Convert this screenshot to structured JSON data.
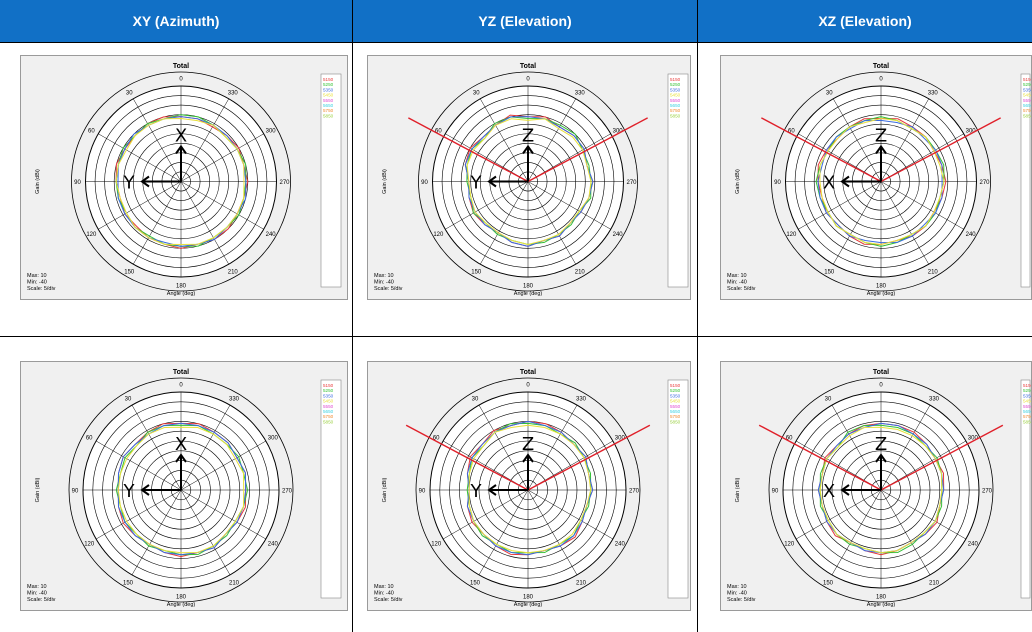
{
  "columns": [
    "XY (Azimuth)",
    "YZ (Elevation)",
    "XZ (Elevation)"
  ],
  "colors": {
    "header_bg": "#1170c6",
    "plot_bg": "#f0f0f0",
    "ring": "#000000",
    "beam_line": "#e0202a",
    "series": [
      "#e83a3a",
      "#35c235",
      "#3a6be0",
      "#e8e03a",
      "#e04ad0",
      "#3ad0e0",
      "#f08a30",
      "#9ad040"
    ]
  },
  "chart_data": [
    {
      "type": "polar",
      "panel": "row1-xy",
      "title": "Total",
      "xlabel": "Angle (deg)",
      "ylabel": "Gain (dBi)",
      "angle_ticks": [
        "0",
        "30",
        "60",
        "90",
        "120",
        "150",
        "180",
        "210",
        "240",
        "270",
        "300",
        "330"
      ],
      "info": [
        "Max: 10",
        "Min: -40",
        "Scale: 5/div"
      ],
      "legend_items": [
        "5150",
        "5250",
        "5350",
        "5450",
        "5550",
        "5650",
        "5750",
        "5850"
      ],
      "axes_labels": {
        "up": "X",
        "left": "Y"
      },
      "beam_lines": false,
      "r_range": [
        -40,
        10
      ],
      "series": [
        {
          "values": [
            -6,
            -5,
            -5,
            -6,
            -6,
            -5,
            -6,
            -7,
            -6,
            -7,
            -6,
            -6,
            -5,
            -6,
            -5,
            -5,
            -6,
            -6,
            -5,
            -6,
            -5,
            -6,
            -7,
            -6
          ]
        },
        {
          "values": [
            -5,
            -6,
            -5,
            -6,
            -5,
            -6,
            -6,
            -6,
            -7,
            -6,
            -7,
            -6,
            -6,
            -5,
            -6,
            -6,
            -5,
            -6,
            -6,
            -5,
            -6,
            -7,
            -6,
            -5
          ]
        },
        {
          "values": [
            -6,
            -6,
            -6,
            -5,
            -6,
            -6,
            -7,
            -6,
            -6,
            -6,
            -6,
            -7,
            -6,
            -6,
            -5,
            -6,
            -6,
            -5,
            -6,
            -6,
            -6,
            -6,
            -6,
            -6
          ]
        },
        {
          "values": [
            -7,
            -6,
            -6,
            -6,
            -7,
            -6,
            -6,
            -7,
            -7,
            -6,
            -6,
            -6,
            -7,
            -6,
            -6,
            -6,
            -6,
            -6,
            -7,
            -6,
            -6,
            -7,
            -6,
            -7
          ]
        }
      ]
    },
    {
      "type": "polar",
      "panel": "row1-yz",
      "title": "Total",
      "xlabel": "Angle (deg)",
      "ylabel": "Gain (dBi)",
      "angle_ticks": [
        "0",
        "30",
        "60",
        "90",
        "120",
        "150",
        "180",
        "210",
        "240",
        "270",
        "300",
        "330"
      ],
      "info": [
        "Max: 10",
        "Min: -40",
        "Scale: 5/div"
      ],
      "legend_items": [
        "5150",
        "5250",
        "5350",
        "5450",
        "5550",
        "5650",
        "5750",
        "5850"
      ],
      "axes_labels": {
        "up": "Z",
        "left": "Y"
      },
      "beam_lines": true,
      "r_range": [
        -40,
        10
      ],
      "series": [
        {
          "values": [
            -6,
            -4,
            -6,
            -7,
            -5,
            -6,
            -9,
            -8,
            -7,
            -8,
            -9,
            -7,
            -6,
            -8,
            -7,
            -9,
            -8,
            -7,
            -6,
            -8,
            -6,
            -6,
            -7,
            -5
          ]
        },
        {
          "values": [
            -7,
            -5,
            -5,
            -8,
            -6,
            -7,
            -8,
            -9,
            -7,
            -9,
            -8,
            -8,
            -7,
            -7,
            -8,
            -8,
            -9,
            -6,
            -7,
            -7,
            -7,
            -5,
            -6,
            -6
          ]
        },
        {
          "values": [
            -6,
            -5,
            -6,
            -7,
            -6,
            -6,
            -9,
            -8,
            -8,
            -8,
            -9,
            -7,
            -6,
            -8,
            -7,
            -9,
            -8,
            -7,
            -6,
            -8,
            -6,
            -6,
            -7,
            -6
          ]
        },
        {
          "values": [
            -8,
            -6,
            -6,
            -8,
            -7,
            -7,
            -9,
            -9,
            -8,
            -9,
            -9,
            -8,
            -7,
            -8,
            -8,
            -9,
            -9,
            -7,
            -7,
            -8,
            -7,
            -7,
            -8,
            -6
          ]
        }
      ]
    },
    {
      "type": "polar",
      "panel": "row1-xz",
      "title": "Total",
      "xlabel": "Angle (deg)",
      "ylabel": "Gain (dBi)",
      "angle_ticks": [
        "0",
        "30",
        "60",
        "90",
        "120",
        "150",
        "180",
        "210",
        "240",
        "270",
        "300",
        "330"
      ],
      "info": [
        "Max: 10",
        "Min: -40",
        "Scale: 5/div"
      ],
      "legend_items": [
        "5150",
        "5250",
        "5350",
        "5450",
        "5550",
        "5650",
        "5750",
        "5850"
      ],
      "axes_labels": {
        "up": "Z",
        "left": "X"
      },
      "beam_lines": true,
      "r_range": [
        -40,
        10
      ],
      "series": [
        {
          "values": [
            -7,
            -6,
            -7,
            -8,
            -7,
            -6,
            -7,
            -8,
            -7,
            -8,
            -7,
            -6,
            -7,
            -8,
            -7,
            -7,
            -8,
            -7,
            -6,
            -7,
            -8,
            -7,
            -7,
            -6
          ]
        },
        {
          "values": [
            -6,
            -7,
            -7,
            -7,
            -8,
            -7,
            -6,
            -7,
            -8,
            -7,
            -8,
            -7,
            -6,
            -7,
            -8,
            -7,
            -7,
            -8,
            -7,
            -6,
            -7,
            -7,
            -8,
            -7
          ]
        },
        {
          "values": [
            -8,
            -7,
            -8,
            -7,
            -7,
            -8,
            -7,
            -7,
            -7,
            -8,
            -7,
            -8,
            -8,
            -7,
            -7,
            -8,
            -7,
            -7,
            -8,
            -7,
            -7,
            -8,
            -7,
            -8
          ]
        },
        {
          "values": [
            -7,
            -8,
            -7,
            -8,
            -8,
            -7,
            -8,
            -8,
            -8,
            -7,
            -8,
            -7,
            -7,
            -8,
            -8,
            -7,
            -8,
            -8,
            -7,
            -8,
            -8,
            -7,
            -8,
            -7
          ]
        }
      ]
    },
    {
      "type": "polar",
      "panel": "row2-xy",
      "title": "Total",
      "xlabel": "Angle (deg)",
      "ylabel": "Gain (dBi)",
      "angle_ticks": [
        "0",
        "30",
        "60",
        "90",
        "120",
        "150",
        "180",
        "210",
        "240",
        "270",
        "300",
        "330"
      ],
      "info": [
        "Max: 10",
        "Min: -40",
        "Scale: 5/div"
      ],
      "legend_items": [
        "5150",
        "5250",
        "5350",
        "5450",
        "5550",
        "5650",
        "5750",
        "5850"
      ],
      "axes_labels": {
        "up": "X",
        "left": "Y"
      },
      "beam_lines": false,
      "r_range": [
        -40,
        10
      ],
      "series": [
        {
          "values": [
            -6,
            -5,
            -6,
            -7,
            -6,
            -7,
            -8,
            -7,
            -6,
            -7,
            -8,
            -7,
            -6,
            -7,
            -6,
            -8,
            -7,
            -6,
            -7,
            -6,
            -7,
            -6,
            -6,
            -5
          ]
        },
        {
          "values": [
            -7,
            -6,
            -6,
            -8,
            -7,
            -8,
            -7,
            -8,
            -7,
            -8,
            -7,
            -8,
            -7,
            -6,
            -7,
            -7,
            -8,
            -7,
            -6,
            -7,
            -6,
            -7,
            -7,
            -6
          ]
        },
        {
          "values": [
            -6,
            -6,
            -7,
            -7,
            -6,
            -7,
            -8,
            -7,
            -7,
            -7,
            -8,
            -7,
            -7,
            -7,
            -6,
            -8,
            -7,
            -7,
            -7,
            -6,
            -7,
            -6,
            -6,
            -6
          ]
        },
        {
          "values": [
            -8,
            -7,
            -7,
            -8,
            -8,
            -8,
            -8,
            -8,
            -8,
            -8,
            -8,
            -8,
            -8,
            -7,
            -7,
            -8,
            -8,
            -7,
            -8,
            -7,
            -8,
            -7,
            -7,
            -7
          ]
        }
      ]
    },
    {
      "type": "polar",
      "panel": "row2-yz",
      "title": "Total",
      "xlabel": "Angle (deg)",
      "ylabel": "Gain (dBi)",
      "angle_ticks": [
        "0",
        "30",
        "60",
        "90",
        "120",
        "150",
        "180",
        "210",
        "240",
        "270",
        "300",
        "330"
      ],
      "info": [
        "Max: 10",
        "Min: -40",
        "Scale: 5/div"
      ],
      "legend_items": [
        "5150",
        "5250",
        "5350",
        "5450",
        "5550",
        "5650",
        "5750",
        "5850"
      ],
      "axes_labels": {
        "up": "Z",
        "left": "Y"
      },
      "beam_lines": true,
      "r_range": [
        -40,
        10
      ],
      "series": [
        {
          "values": [
            -5,
            -6,
            -5,
            -7,
            -6,
            -8,
            -10,
            -8,
            -7,
            -8,
            -7,
            -6,
            -7,
            -8,
            -7,
            -6,
            -8,
            -9,
            -7,
            -8,
            -6,
            -7,
            -6,
            -5
          ]
        },
        {
          "values": [
            -6,
            -5,
            -6,
            -8,
            -7,
            -9,
            -9,
            -9,
            -8,
            -7,
            -8,
            -7,
            -8,
            -7,
            -8,
            -7,
            -9,
            -8,
            -8,
            -7,
            -7,
            -6,
            -7,
            -6
          ]
        },
        {
          "values": [
            -5,
            -6,
            -6,
            -7,
            -7,
            -8,
            -10,
            -8,
            -8,
            -8,
            -7,
            -7,
            -7,
            -8,
            -7,
            -7,
            -8,
            -9,
            -7,
            -8,
            -6,
            -7,
            -6,
            -6
          ]
        },
        {
          "values": [
            -7,
            -7,
            -6,
            -8,
            -8,
            -9,
            -10,
            -9,
            -8,
            -8,
            -8,
            -8,
            -8,
            -8,
            -8,
            -8,
            -9,
            -9,
            -8,
            -8,
            -7,
            -7,
            -7,
            -7
          ]
        }
      ]
    },
    {
      "type": "polar",
      "panel": "row2-xz",
      "title": "Total",
      "xlabel": "Angle (deg)",
      "ylabel": "Gain (dBi)",
      "angle_ticks": [
        "0",
        "30",
        "60",
        "90",
        "120",
        "150",
        "180",
        "210",
        "240",
        "270",
        "300",
        "330"
      ],
      "info": [
        "Max: 10",
        "Min: -40",
        "Scale: 5/div"
      ],
      "legend_items": [
        "5150",
        "5250",
        "5350",
        "5450",
        "5550",
        "5650",
        "5750",
        "5850"
      ],
      "axes_labels": {
        "up": "Z",
        "left": "X"
      },
      "beam_lines": true,
      "r_range": [
        -40,
        10
      ],
      "series": [
        {
          "values": [
            -6,
            -6,
            -7,
            -8,
            -7,
            -9,
            -8,
            -9,
            -8,
            -7,
            -9,
            -8,
            -7,
            -8,
            -9,
            -8,
            -7,
            -9,
            -8,
            -7,
            -8,
            -7,
            -6,
            -6
          ]
        },
        {
          "values": [
            -7,
            -6,
            -6,
            -9,
            -8,
            -8,
            -9,
            -8,
            -9,
            -8,
            -8,
            -9,
            -8,
            -7,
            -8,
            -9,
            -8,
            -8,
            -9,
            -8,
            -7,
            -8,
            -7,
            -7
          ]
        },
        {
          "values": [
            -6,
            -7,
            -7,
            -8,
            -8,
            -9,
            -8,
            -9,
            -8,
            -8,
            -9,
            -8,
            -8,
            -8,
            -9,
            -8,
            -8,
            -9,
            -8,
            -8,
            -8,
            -7,
            -7,
            -6
          ]
        },
        {
          "values": [
            -8,
            -7,
            -8,
            -9,
            -8,
            -9,
            -9,
            -9,
            -9,
            -8,
            -9,
            -9,
            -8,
            -8,
            -9,
            -9,
            -8,
            -9,
            -9,
            -8,
            -8,
            -8,
            -8,
            -8
          ]
        }
      ]
    }
  ]
}
